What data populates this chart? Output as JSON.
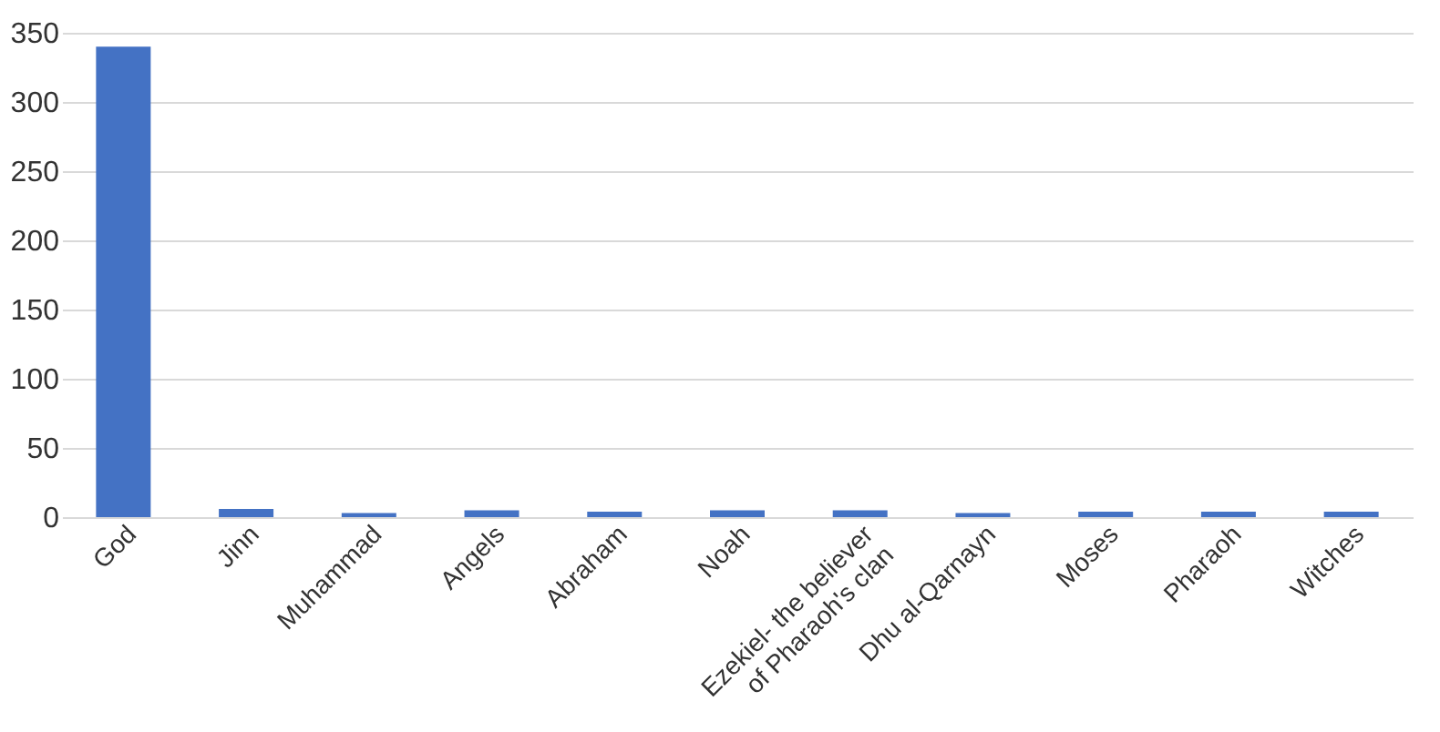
{
  "chart_data": {
    "type": "bar",
    "categories": [
      "God",
      "Jinn",
      "Muhammad",
      "Angels",
      "Abraham",
      "Noah",
      "Ezekiel- the believer of Pharaoh's clan",
      "Dhu al-Qarnayn",
      "Moses",
      "Pharaoh",
      "Witches"
    ],
    "values": [
      340,
      6,
      3,
      5,
      4,
      5,
      5,
      3,
      4,
      4,
      4
    ],
    "color": "#4472c4",
    "ylim": [
      0,
      350
    ],
    "yticks": [
      0,
      50,
      100,
      150,
      200,
      250,
      300,
      350
    ],
    "grid": "y"
  }
}
